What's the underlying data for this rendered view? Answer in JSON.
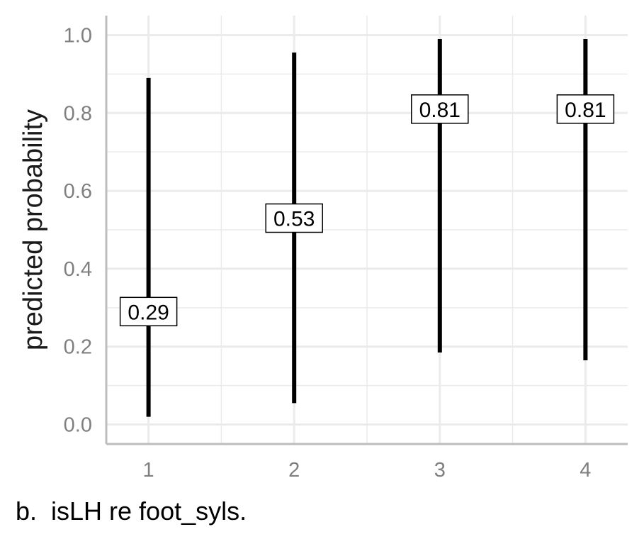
{
  "caption": "b.  isLH re foot_syls.",
  "chart_data": {
    "type": "errorbar",
    "ylabel": "predicted probability",
    "xlabel": "",
    "x_ticks": [
      "1",
      "2",
      "3",
      "4"
    ],
    "y_ticks": [
      "0.0",
      "0.2",
      "0.4",
      "0.6",
      "0.8",
      "1.0"
    ],
    "ylim": [
      -0.05,
      1.05
    ],
    "grid": true,
    "points": [
      {
        "x": "1",
        "estimate": 0.29,
        "label": "0.29",
        "lower": 0.02,
        "upper": 0.89
      },
      {
        "x": "2",
        "estimate": 0.53,
        "label": "0.53",
        "lower": 0.055,
        "upper": 0.955
      },
      {
        "x": "3",
        "estimate": 0.81,
        "label": "0.81",
        "lower": 0.185,
        "upper": 0.99
      },
      {
        "x": "4",
        "estimate": 0.81,
        "label": "0.81",
        "lower": 0.165,
        "upper": 0.99
      }
    ],
    "colors": {
      "bar": "#000000",
      "grid": "#ebebeb",
      "axis": "#bdbdbd",
      "tick_text": "#7f7f7f"
    }
  }
}
